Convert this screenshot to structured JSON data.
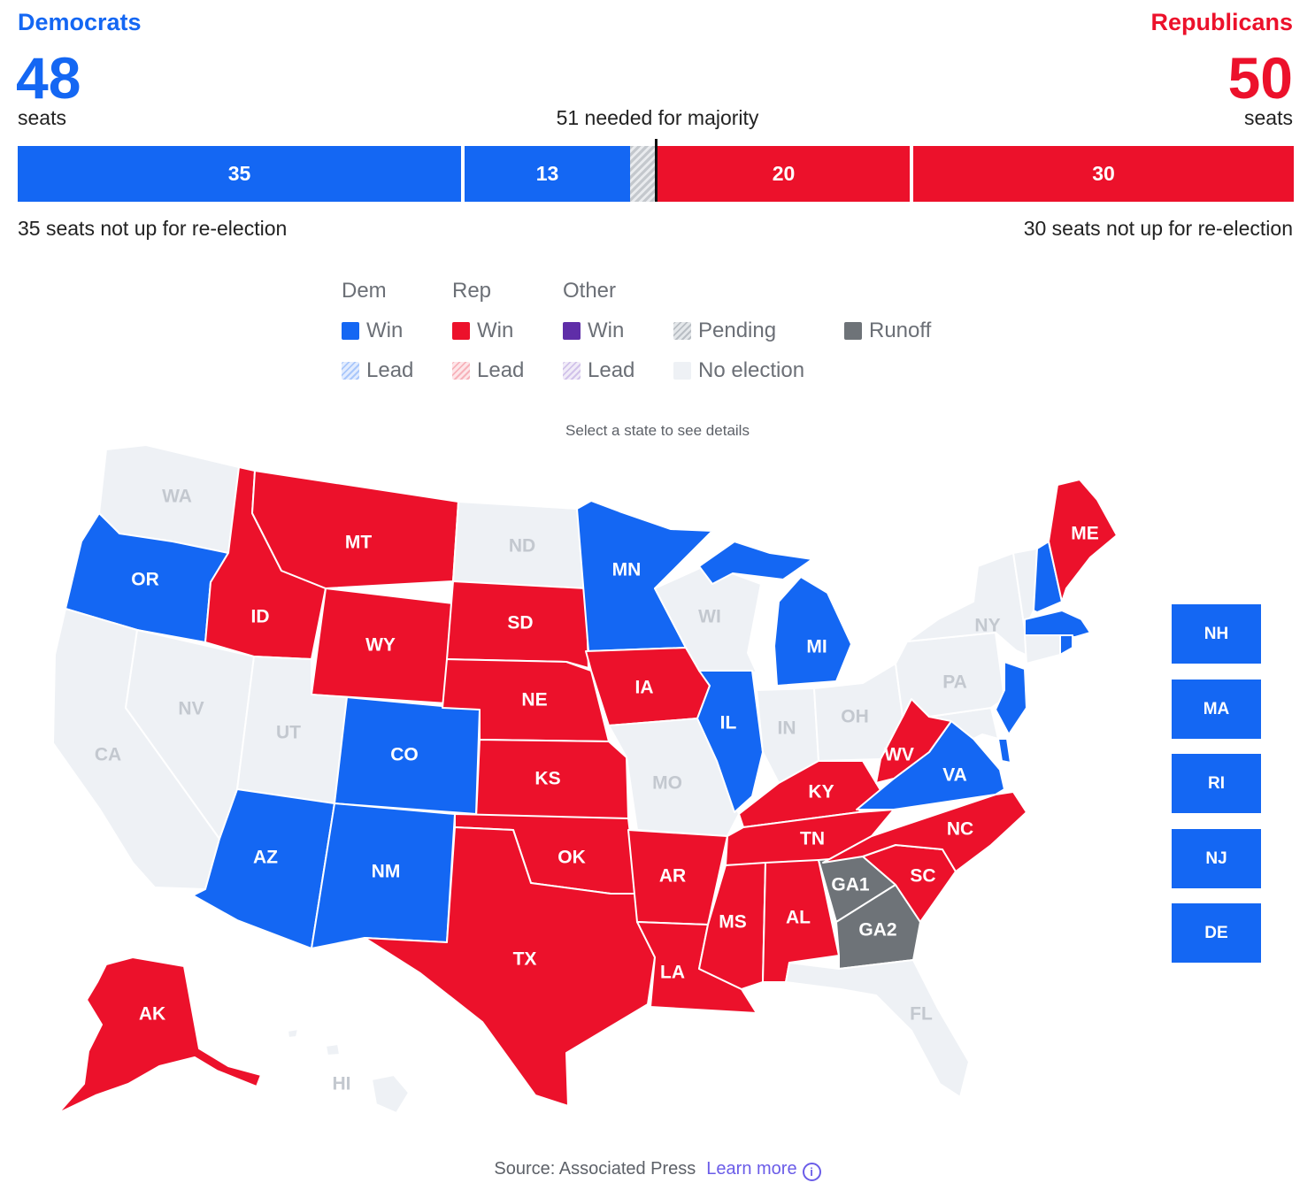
{
  "header": {
    "dem": {
      "name": "Democrats",
      "count": "48",
      "unit": "seats"
    },
    "rep": {
      "name": "Republicans",
      "count": "50",
      "unit": "seats"
    },
    "majority_text": "51 needed for majority"
  },
  "seat_bar": {
    "total_seats": 100,
    "segments": [
      {
        "party": "dem",
        "kind": "not-up",
        "seats": 35,
        "label": "35"
      },
      {
        "party": "dem",
        "kind": "won",
        "seats": 13,
        "label": "13"
      },
      {
        "party": "pending",
        "kind": "pending",
        "seats": 2,
        "label": ""
      },
      {
        "party": "rep",
        "kind": "won",
        "seats": 20,
        "label": "20"
      },
      {
        "party": "rep",
        "kind": "not-up",
        "seats": 30,
        "label": "30"
      }
    ],
    "majority_seats": 51,
    "left_note": "35 seats not up for re-election",
    "right_note": "30 seats not up for re-election"
  },
  "legend": {
    "headers": {
      "dem": "Dem",
      "rep": "Rep",
      "other": "Other"
    },
    "items": {
      "dem_win": "Win",
      "rep_win": "Win",
      "other_win": "Win",
      "pending": "Pending",
      "runoff": "Runoff",
      "dem_lead": "Lead",
      "rep_lead": "Lead",
      "other_lead": "Lead",
      "no_election": "No election"
    }
  },
  "colors": {
    "dem": "#1467f3",
    "rep": "#ec112b",
    "other": "#5f2ea8",
    "runoff": "#6e7378",
    "no_election": "#eef1f5",
    "no_election_label": "#c3c8cf"
  },
  "map_prompt": "Select a state to see details",
  "states": {
    "WA": "none",
    "OR": "dem",
    "CA": "none",
    "NV": "none",
    "ID": "rep",
    "MT": "rep",
    "WY": "rep",
    "UT": "none",
    "AZ": "dem",
    "CO": "dem",
    "NM": "dem",
    "ND": "none",
    "SD": "rep",
    "NE": "rep",
    "KS": "rep",
    "OK": "rep",
    "TX": "rep",
    "MN": "dem",
    "IA": "rep",
    "MO": "none",
    "AR": "rep",
    "LA": "rep",
    "WI": "none",
    "IL": "dem",
    "MI": "dem",
    "IN": "none",
    "OH": "none",
    "KY": "rep",
    "TN": "rep",
    "MS": "rep",
    "AL": "rep",
    "GA1": "runoff",
    "GA2": "runoff",
    "FL": "none",
    "SC": "rep",
    "NC": "rep",
    "VA": "dem",
    "WV": "rep",
    "PA": "none",
    "NY": "none",
    "ME": "rep",
    "AK": "rep",
    "HI": "none",
    "VT": "none",
    "NH": "dem",
    "MA": "dem",
    "RI": "dem",
    "CT": "none",
    "NJ": "dem",
    "DE": "dem",
    "MD": "none"
  },
  "small_states": [
    {
      "code": "NH",
      "label": "NH",
      "status": "dem"
    },
    {
      "code": "MA",
      "label": "MA",
      "status": "dem"
    },
    {
      "code": "RI",
      "label": "RI",
      "status": "dem"
    },
    {
      "code": "NJ",
      "label": "NJ",
      "status": "dem"
    },
    {
      "code": "DE",
      "label": "DE",
      "status": "dem"
    }
  ],
  "footer": {
    "source": "Source: Associated Press",
    "learn_more": "Learn more",
    "info_glyph": "i"
  }
}
